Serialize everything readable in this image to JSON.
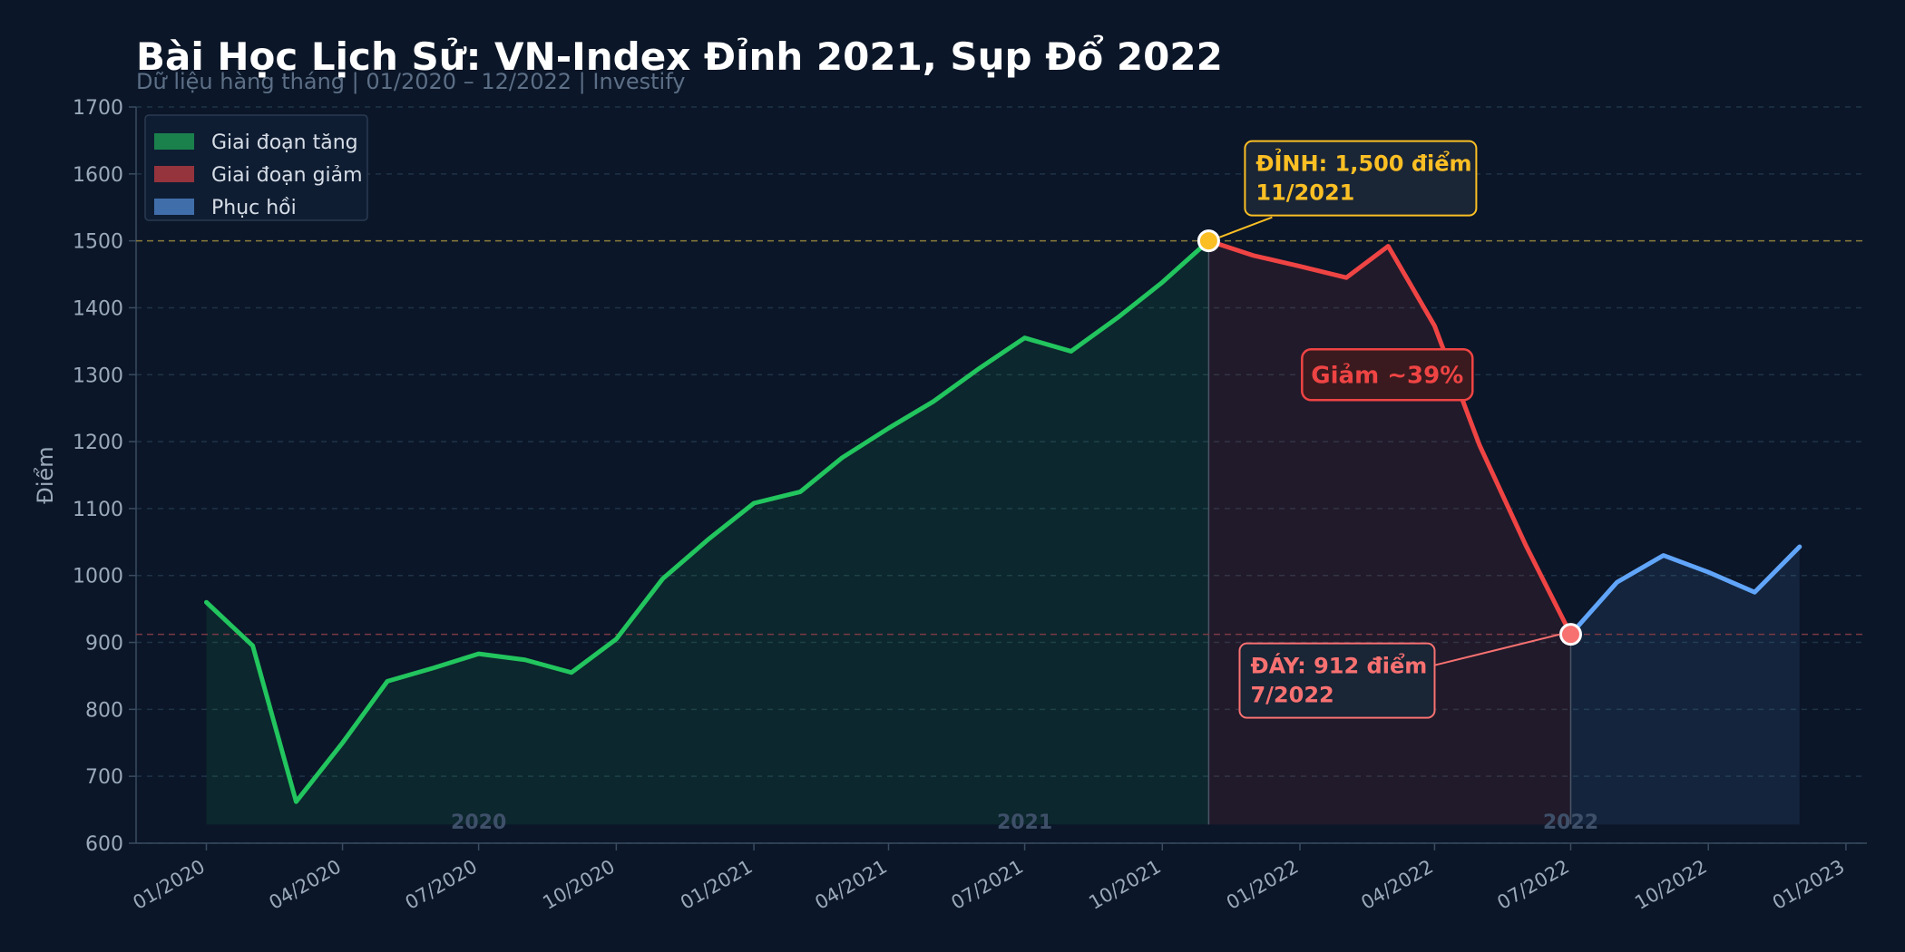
{
  "header": {
    "title": "Bài Học Lịch Sử: VN-Index Đỉnh 2021, Sụp Đổ 2022",
    "subtitle": "Dữ liệu hàng tháng  |  01/2020 – 12/2022  |  Investify"
  },
  "colors": {
    "background": "#0b1628",
    "rise": "#22c55e",
    "fall": "#ef4444",
    "recovery": "#60a5fa",
    "peak": "#fbbf24",
    "trough": "#f87171",
    "grid": "#1f3347",
    "axis_text": "#9aa9bb"
  },
  "chart_data": {
    "type": "line",
    "title": "Bài Học Lịch Sử: VN-Index Đỉnh 2021, Sụp Đổ 2022",
    "subtitle": "Dữ liệu hàng tháng  |  01/2020 – 12/2022  |  Investify",
    "xlabel": "",
    "ylabel": "Điểm",
    "ylim": [
      600,
      1700
    ],
    "xlim": [
      "2019-11-15",
      "2023-01-15"
    ],
    "grid": "y",
    "legend_position": "top-left",
    "x_ticks": [
      "2020-01-01",
      "2020-04-01",
      "2020-07-01",
      "2020-10-01",
      "2021-01-01",
      "2021-04-01",
      "2021-07-01",
      "2021-10-01",
      "2022-01-01",
      "2022-04-01",
      "2022-07-01",
      "2022-10-01",
      "2023-01-01"
    ],
    "x_tick_labels": [
      "01/2020",
      "04/2020",
      "07/2020",
      "10/2020",
      "01/2021",
      "04/2021",
      "07/2021",
      "10/2021",
      "01/2022",
      "04/2022",
      "07/2022",
      "10/2022",
      "01/2023"
    ],
    "y_ticks": [
      600,
      700,
      800,
      900,
      1000,
      1100,
      1200,
      1300,
      1400,
      1500,
      1600,
      1700
    ],
    "series": [
      {
        "name": "Giai đoạn tăng",
        "color": "#22c55e",
        "points": [
          [
            "2020-01-01",
            960
          ],
          [
            "2020-02-01",
            895
          ],
          [
            "2020-03-01",
            662
          ],
          [
            "2020-04-01",
            750
          ],
          [
            "2020-05-01",
            842
          ],
          [
            "2020-06-01",
            862
          ],
          [
            "2020-07-01",
            883
          ],
          [
            "2020-08-01",
            874
          ],
          [
            "2020-09-01",
            855
          ],
          [
            "2020-10-01",
            905
          ],
          [
            "2020-11-01",
            995
          ],
          [
            "2020-12-01",
            1053
          ],
          [
            "2021-01-01",
            1108
          ],
          [
            "2021-02-01",
            1125
          ],
          [
            "2021-03-01",
            1176
          ],
          [
            "2021-04-01",
            1220
          ],
          [
            "2021-05-01",
            1260
          ],
          [
            "2021-06-01",
            1310
          ],
          [
            "2021-07-01",
            1355
          ],
          [
            "2021-08-01",
            1335
          ],
          [
            "2021-09-01",
            1385
          ],
          [
            "2021-10-01",
            1438
          ],
          [
            "2021-11-01",
            1500
          ]
        ]
      },
      {
        "name": "Giai đoạn giảm",
        "color": "#ef4444",
        "points": [
          [
            "2021-11-01",
            1500
          ],
          [
            "2021-12-01",
            1478
          ],
          [
            "2022-01-01",
            1462
          ],
          [
            "2022-02-01",
            1445
          ],
          [
            "2022-03-01",
            1492
          ],
          [
            "2022-04-01",
            1373
          ],
          [
            "2022-05-01",
            1195
          ],
          [
            "2022-06-01",
            1045
          ],
          [
            "2022-07-01",
            912
          ]
        ]
      },
      {
        "name": "Phục hồi",
        "color": "#60a5fa",
        "points": [
          [
            "2022-07-01",
            912
          ],
          [
            "2022-08-01",
            990
          ],
          [
            "2022-09-01",
            1030
          ],
          [
            "2022-10-01",
            1005
          ],
          [
            "2022-11-01",
            975
          ],
          [
            "2022-12-01",
            1043
          ]
        ]
      }
    ],
    "reference_lines": [
      {
        "y": 1500,
        "color": "#8a7a3a"
      },
      {
        "y": 912,
        "color": "#7a3a44"
      }
    ],
    "year_labels": [
      {
        "label": "2020",
        "x": "2020-07-01"
      },
      {
        "label": "2021",
        "x": "2021-07-01"
      },
      {
        "label": "2022",
        "x": "2022-07-01"
      }
    ],
    "annotations": {
      "peak": {
        "x": "2021-11-01",
        "y": 1500,
        "line1": "ĐỈNH: 1,500 điểm",
        "line2": "11/2021"
      },
      "trough": {
        "x": "2022-07-01",
        "y": 912,
        "line1": "ĐÁY: 912 điểm",
        "line2": "7/2022"
      },
      "drop": {
        "label": "Giảm ~39%"
      }
    }
  }
}
